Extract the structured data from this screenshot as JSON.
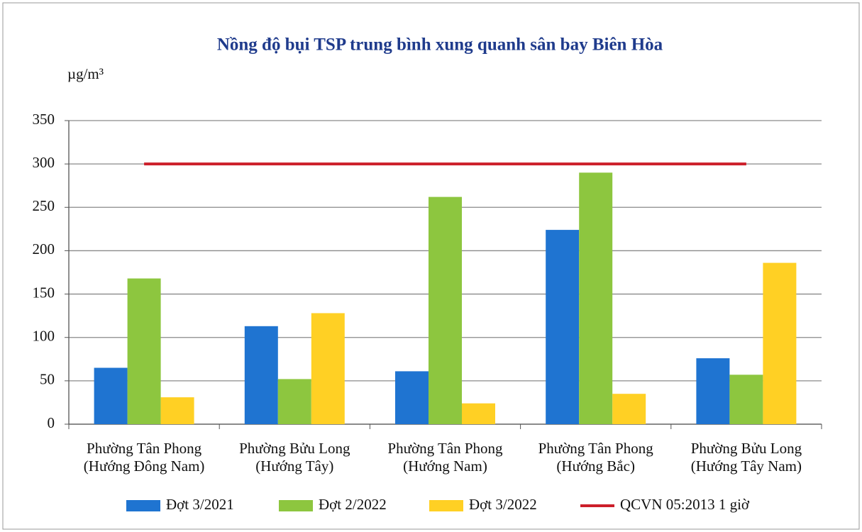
{
  "chart_data": {
    "type": "bar",
    "title": "Nồng độ bụi TSP trung bình xung quanh sân bay Biên Hòa",
    "y_label": "µg/m³",
    "categories": [
      "Phường Tân Phong (Hướng Đông Nam)",
      "Phường Bửu Long (Hướng Tây)",
      "Phường Tân Phong (Hướng Nam)",
      "Phường Tân Phong (Hướng Bắc)",
      "Phường Bửu Long (Hướng Tây Nam)"
    ],
    "series": [
      {
        "name": "Đợt 3/2021",
        "color": "#1f74d1",
        "values": [
          65,
          113,
          61,
          224,
          76
        ]
      },
      {
        "name": "Đợt 2/2022",
        "color": "#8dc63f",
        "values": [
          168,
          52,
          262,
          290,
          57
        ]
      },
      {
        "name": "Đợt 3/2022",
        "color": "#ffd024",
        "values": [
          31,
          128,
          24,
          35,
          186
        ]
      },
      {
        "name": "QCVN 05:2013 1 giờ",
        "color": "#cc1f2a",
        "type": "line",
        "values": [
          300,
          300,
          300,
          300,
          300
        ]
      }
    ],
    "ylim": [
      0,
      350
    ],
    "yticks": [
      0,
      50,
      100,
      150,
      200,
      250,
      300,
      350
    ],
    "grid": true,
    "legend": "bottom"
  }
}
